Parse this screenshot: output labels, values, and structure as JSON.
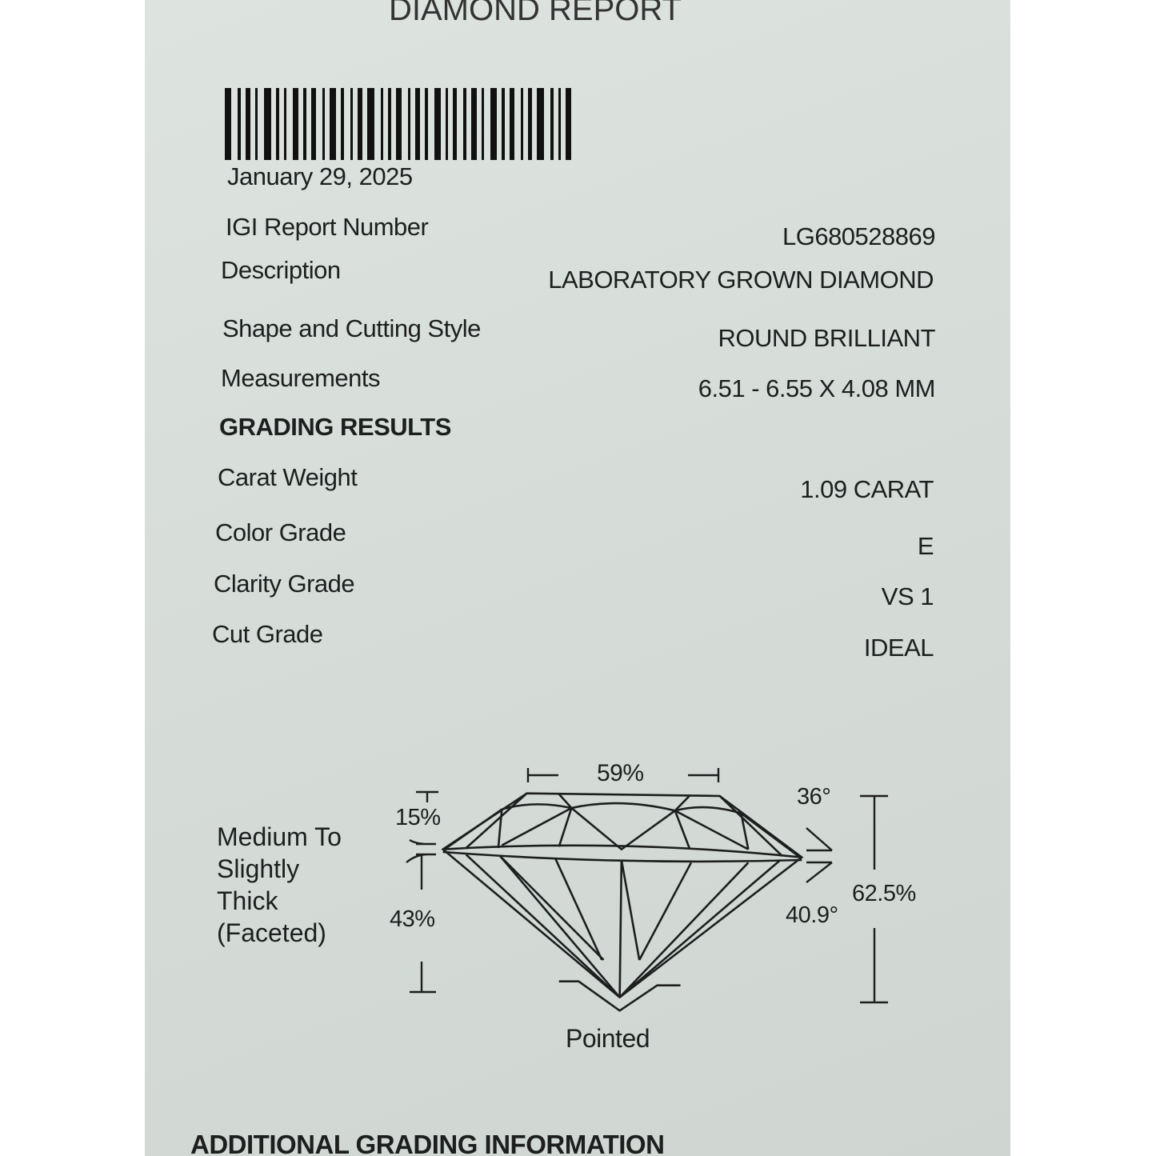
{
  "header": {
    "title": "DIAMOND REPORT"
  },
  "report": {
    "date": "January 29, 2025",
    "fields": [
      {
        "label": "IGI Report Number",
        "value": "LG680528869"
      },
      {
        "label": "Description",
        "value": "LABORATORY GROWN DIAMOND"
      },
      {
        "label": "Shape and Cutting Style",
        "value": "ROUND BRILLIANT"
      },
      {
        "label": "Measurements",
        "value": "6.51 - 6.55 X 4.08 MM"
      }
    ],
    "grading_heading": "GRADING RESULTS",
    "grading": [
      {
        "label": "Carat Weight",
        "value": "1.09 CARAT"
      },
      {
        "label": "Color Grade",
        "value": "E"
      },
      {
        "label": "Clarity Grade",
        "value": "VS 1"
      },
      {
        "label": "Cut Grade",
        "value": "IDEAL"
      }
    ]
  },
  "proportions": {
    "table": "59%",
    "crown_height": "15%",
    "pavilion_depth": "43%",
    "crown_angle": "36°",
    "pavilion_angle": "40.9°",
    "total_depth": "62.5%",
    "culet": "Pointed",
    "girdle_lines": [
      "Medium To",
      "Slightly",
      "Thick",
      "(Faceted)"
    ]
  },
  "footer": {
    "heading": "ADDITIONAL GRADING INFORMATION"
  }
}
